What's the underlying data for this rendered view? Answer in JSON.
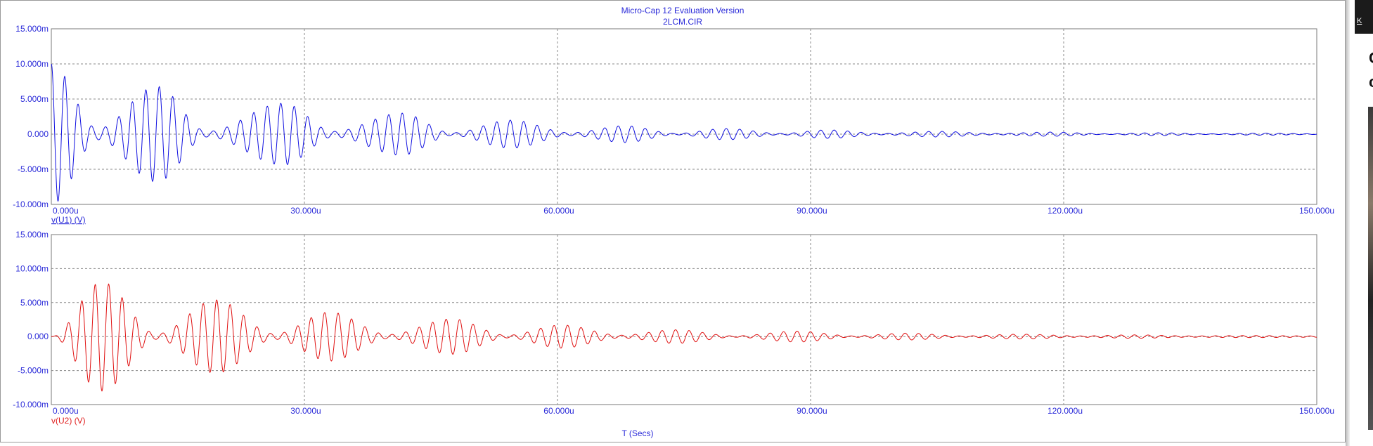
{
  "window": {
    "title_line1": "Micro-Cap 12 Evaluation Version",
    "title_line2": "2LCM.CIR"
  },
  "side_panel": {
    "tab_text": "K",
    "char1": "C",
    "char2": "c"
  },
  "colors": {
    "trace1": "#1010e0",
    "trace2": "#e01010",
    "text": "#2b2bd9",
    "grid": "#8a8a8a"
  },
  "chart_data": [
    {
      "type": "line",
      "ylabel": "v(U1) (V)",
      "xlabel": "",
      "x_ticks": [
        "0.000u",
        "30.000u",
        "60.000u",
        "90.000u",
        "120.000u",
        "150.000u"
      ],
      "y_ticks": [
        "15.000m",
        "10.000m",
        "5.000m",
        "0.000",
        "-5.000m",
        "-10.000m"
      ],
      "xlim": [
        0,
        150
      ],
      "x_unit": "us",
      "ylim": [
        -10,
        15
      ],
      "y_unit": "mV",
      "grid": true,
      "series": [
        {
          "name": "v(U1) (V)",
          "color": "#1010e0",
          "carrier_period_us": 1.6,
          "envelope_peaks_mV": [
            [
              0.0,
              10.0
            ],
            [
              5.5,
              0.8
            ],
            [
              12.5,
              6.8
            ],
            [
              18.5,
              0.4
            ],
            [
              27.5,
              4.4
            ],
            [
              33.5,
              0.4
            ],
            [
              41.5,
              3.0
            ],
            [
              47.5,
              0.2
            ],
            [
              54.5,
              2.0
            ],
            [
              61.5,
              0.2
            ],
            [
              68.0,
              1.2
            ],
            [
              74.0,
              0.1
            ],
            [
              80.0,
              0.8
            ],
            [
              86.5,
              0.1
            ],
            [
              92.0,
              0.6
            ],
            [
              98.5,
              0.1
            ],
            [
              105.0,
              0.4
            ],
            [
              112.0,
              0.1
            ],
            [
              118.5,
              0.3
            ],
            [
              125.0,
              0.05
            ],
            [
              131.0,
              0.2
            ],
            [
              137.5,
              0.05
            ],
            [
              143.5,
              0.15
            ],
            [
              150.0,
              0.05
            ]
          ]
        }
      ]
    },
    {
      "type": "line",
      "ylabel": "v(U2) (V)",
      "xlabel": "T (Secs)",
      "x_ticks": [
        "0.000u",
        "30.000u",
        "60.000u",
        "90.000u",
        "120.000u",
        "150.000u"
      ],
      "y_ticks": [
        "15.000m",
        "10.000m",
        "5.000m",
        "0.000",
        "-5.000m",
        "-10.000m"
      ],
      "xlim": [
        0,
        150
      ],
      "x_unit": "us",
      "ylim": [
        -10,
        15
      ],
      "y_unit": "mV",
      "grid": true,
      "series": [
        {
          "name": "v(U2) (V)",
          "color": "#e01010",
          "carrier_period_us": 1.6,
          "envelope_peaks_mV": [
            [
              0.0,
              0.0
            ],
            [
              6.0,
              8.0
            ],
            [
              12.5,
              0.4
            ],
            [
              19.5,
              5.4
            ],
            [
              26.5,
              0.4
            ],
            [
              33.0,
              3.6
            ],
            [
              40.0,
              0.3
            ],
            [
              47.5,
              2.6
            ],
            [
              54.0,
              0.2
            ],
            [
              60.5,
              1.7
            ],
            [
              67.5,
              0.2
            ],
            [
              74.0,
              1.0
            ],
            [
              81.0,
              0.1
            ],
            [
              88.5,
              0.8
            ],
            [
              95.0,
              0.1
            ],
            [
              101.5,
              0.5
            ],
            [
              108.0,
              0.1
            ],
            [
              115.0,
              0.35
            ],
            [
              122.0,
              0.1
            ],
            [
              128.5,
              0.25
            ],
            [
              135.0,
              0.1
            ],
            [
              142.0,
              0.15
            ],
            [
              150.0,
              0.1
            ]
          ]
        }
      ]
    }
  ]
}
